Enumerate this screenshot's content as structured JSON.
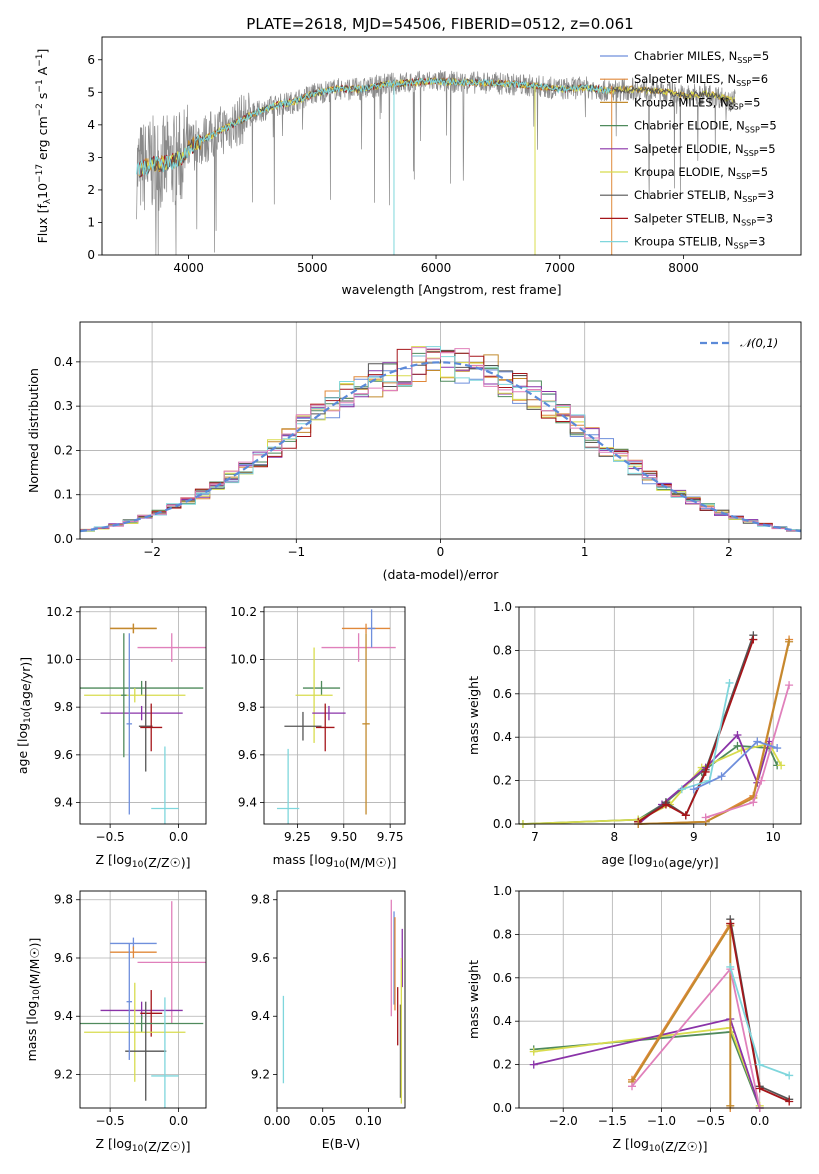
{
  "header": {
    "title": "PLATE=2618, MJD=54506, FIBERID=0512, z=0.061"
  },
  "colors": {
    "Chabrier MILES": "#6f8fdc",
    "Salpeter MILES": "#e0883a",
    "Kroupa MILES": "#c28a2e",
    "Chabrier ELODIE": "#4f8a5c",
    "Salpeter ELODIE": "#8a33a8",
    "Kroupa ELODIE": "#d8dc4e",
    "Chabrier STELIB": "#555555",
    "Salpeter STELIB": "#a5151a",
    "Kroupa STELIB": "#7fd6dc",
    "Pink": "#e080bb",
    "Data": "#8a8a8a"
  },
  "chart_data": [
    {
      "id": "spectrum",
      "type": "line",
      "title": "PLATE=2618, MJD=54506, FIBERID=0512, z=0.061",
      "xlabel": "wavelength [Angstrom, rest frame]",
      "ylabel": "Flux [f_λ 10^-17 erg cm^-2 s^-1 A^-1]",
      "xlim": [
        3300,
        8950
      ],
      "ylim": [
        0,
        6.7
      ],
      "xticks": [
        "4000",
        "5000",
        "6000",
        "7000",
        "8000"
      ],
      "yticks": [
        "0",
        "1",
        "2",
        "3",
        "4",
        "5",
        "6"
      ],
      "legend_position": "right",
      "legend": [
        {
          "name": "Chabrier MILES",
          "suffix": "5"
        },
        {
          "name": "Salpeter MILES",
          "suffix": "6"
        },
        {
          "name": "Kroupa MILES",
          "suffix": "5"
        },
        {
          "name": "Chabrier ELODIE",
          "suffix": "5"
        },
        {
          "name": "Salpeter ELODIE",
          "suffix": "5"
        },
        {
          "name": "Kroupa ELODIE",
          "suffix": "5"
        },
        {
          "name": "Chabrier STELIB",
          "suffix": "3"
        },
        {
          "name": "Salpeter STELIB",
          "suffix": "3"
        },
        {
          "name": "Kroupa STELIB",
          "suffix": "3"
        }
      ],
      "continuum_knots": [
        [
          3580,
          2.6
        ],
        [
          3700,
          2.8
        ],
        [
          3800,
          2.8
        ],
        [
          3950,
          3.0
        ],
        [
          4000,
          3.3
        ],
        [
          4150,
          3.6
        ],
        [
          4300,
          3.9
        ],
        [
          4500,
          4.3
        ],
        [
          4700,
          4.6
        ],
        [
          4850,
          4.7
        ],
        [
          5000,
          4.95
        ],
        [
          5200,
          5.1
        ],
        [
          5400,
          5.1
        ],
        [
          5600,
          5.25
        ],
        [
          5800,
          5.3
        ],
        [
          6000,
          5.35
        ],
        [
          6200,
          5.3
        ],
        [
          6400,
          5.3
        ],
        [
          6600,
          5.25
        ],
        [
          6800,
          5.2
        ],
        [
          7000,
          5.1
        ],
        [
          7200,
          5.15
        ],
        [
          7400,
          5.05
        ],
        [
          7600,
          5.1
        ],
        [
          7800,
          5.05
        ],
        [
          8000,
          4.9
        ],
        [
          8200,
          4.95
        ],
        [
          8400,
          4.75
        ]
      ]
    },
    {
      "id": "residuals",
      "type": "bar",
      "xlabel": "(data-model)/error",
      "ylabel": "Normed distribution",
      "xlim": [
        -2.5,
        2.5
      ],
      "ylim": [
        0,
        0.49
      ],
      "xticks": [
        "−2",
        "−1",
        "0",
        "1",
        "2"
      ],
      "yticks": [
        "0.0",
        "0.1",
        "0.2",
        "0.3",
        "0.4"
      ],
      "grid": true,
      "legend_position": "top-right",
      "normal_label": "𝒩(0,1)"
    },
    {
      "id": "age_vs_Z",
      "type": "scatter",
      "xlabel": "Z [log10(Z/Z☉)]",
      "ylabel": "age  [log10(age/yr)]",
      "xlim": [
        -0.72,
        0.2
      ],
      "ylim": [
        9.31,
        10.22
      ],
      "xticks": [
        "−0.5",
        "0.0"
      ],
      "yticks": [
        "9.4",
        "9.6",
        "9.8",
        "10.0",
        "10.2"
      ],
      "grid": true,
      "points": [
        {
          "s": "Salpeter MILES",
          "x": -0.33,
          "y": 10.13,
          "xerr": 0.17,
          "yerr": 0.02
        },
        {
          "s": "Kroupa MILES",
          "x": -0.33,
          "y": 10.13,
          "xerr": 0.17,
          "yerr": 0.02
        },
        {
          "s": "Pink",
          "x": -0.05,
          "y": 10.05,
          "xerr": 0.25,
          "yerr": 0.06
        },
        {
          "s": "Chabrier ELODIE",
          "x": -0.27,
          "y": 9.88,
          "xerr": 0.45,
          "yerr": 0.03
        },
        {
          "s": "Kroupa ELODIE",
          "x": -0.32,
          "y": 9.85,
          "xerr": 0.37,
          "yerr": 0.03
        },
        {
          "s": "Salpeter ELODIE",
          "x": -0.27,
          "y": 9.775,
          "xerr": 0.3,
          "yerr": 0.03
        },
        {
          "s": "Chabrier STELIB",
          "x": -0.24,
          "y": 9.72,
          "xerr": 0.05,
          "yerr": 0.19
        },
        {
          "s": "Salpeter STELIB",
          "x": -0.2,
          "y": 9.715,
          "xerr": 0.08,
          "yerr": 0.1
        },
        {
          "s": "Kroupa STELIB",
          "x": -0.1,
          "y": 9.375,
          "xerr": 0.1,
          "yerr": 0.26
        },
        {
          "s": "Chabrier MILES",
          "x": -0.36,
          "y": 9.73,
          "xerr": 0.02,
          "yerr": 0.38
        },
        {
          "s": "Chabrier ELODIE",
          "x": -0.4,
          "y": 9.85,
          "xerr": 0.02,
          "yerr": 0.26
        }
      ]
    },
    {
      "id": "age_vs_mass",
      "type": "scatter",
      "xlabel": "mass [log10(M/M☉)]",
      "ylabel": "",
      "xlim": [
        9.07,
        9.83
      ],
      "ylim": [
        9.31,
        10.22
      ],
      "xticks": [
        "9.25",
        "9.50",
        "9.75"
      ],
      "yticks": [
        "9.4",
        "9.6",
        "9.8",
        "10.0",
        "10.2"
      ],
      "grid": true,
      "points": [
        {
          "s": "Salpeter MILES",
          "x": 9.62,
          "y": 10.13,
          "xerr": 0.13,
          "yerr": 0.02
        },
        {
          "s": "Pink",
          "x": 9.58,
          "y": 10.05,
          "xerr": 0.2,
          "yerr": 0.06
        },
        {
          "s": "Chabrier ELODIE",
          "x": 9.38,
          "y": 9.88,
          "xerr": 0.1,
          "yerr": 0.03
        },
        {
          "s": "Kroupa ELODIE",
          "x": 9.34,
          "y": 9.85,
          "xerr": 0.1,
          "yerr": 0.2
        },
        {
          "s": "Salpeter ELODIE",
          "x": 9.42,
          "y": 9.775,
          "xerr": 0.09,
          "yerr": 0.03
        },
        {
          "s": "Chabrier STELIB",
          "x": 9.28,
          "y": 9.72,
          "xerr": 0.1,
          "yerr": 0.06
        },
        {
          "s": "Salpeter STELIB",
          "x": 9.4,
          "y": 9.715,
          "xerr": 0.05,
          "yerr": 0.1
        },
        {
          "s": "Kroupa STELIB",
          "x": 9.2,
          "y": 9.375,
          "xerr": 0.06,
          "yerr": 0.25
        },
        {
          "s": "Chabrier MILES",
          "x": 9.65,
          "y": 10.13,
          "xerr": 0.02,
          "yerr": 0.08
        },
        {
          "s": "Kroupa MILES",
          "x": 9.62,
          "y": 9.73,
          "xerr": 0.02,
          "yerr": 0.38
        }
      ]
    },
    {
      "id": "weight_vs_age",
      "type": "line",
      "xlabel": "age  [log10(age/yr)]",
      "ylabel": "mass weight",
      "xlim": [
        6.8,
        10.35
      ],
      "ylim": [
        0,
        1
      ],
      "xticks": [
        "7",
        "8",
        "9",
        "10"
      ],
      "yticks": [
        "0.0",
        "0.2",
        "0.4",
        "0.6",
        "0.8",
        "1.0"
      ],
      "grid": true,
      "series": [
        {
          "s": "Chabrier ELODIE",
          "pts": [
            [
              6.85,
              0.0
            ],
            [
              8.3,
              0.02
            ],
            [
              8.65,
              0.1
            ],
            [
              9.1,
              0.24
            ],
            [
              9.55,
              0.36
            ],
            [
              9.95,
              0.35
            ],
            [
              10.05,
              0.27
            ]
          ]
        },
        {
          "s": "Kroupa ELODIE",
          "pts": [
            [
              6.85,
              0.0
            ],
            [
              8.3,
              0.02
            ],
            [
              8.7,
              0.09
            ],
            [
              9.1,
              0.26
            ],
            [
              9.6,
              0.34
            ],
            [
              9.95,
              0.37
            ],
            [
              10.1,
              0.27
            ]
          ]
        },
        {
          "s": "Salpeter ELODIE",
          "pts": [
            [
              8.3,
              0.0
            ],
            [
              8.6,
              0.09
            ],
            [
              9.15,
              0.26
            ],
            [
              9.55,
              0.41
            ],
            [
              9.8,
              0.19
            ],
            [
              9.95,
              0.38
            ]
          ]
        },
        {
          "s": "Chabrier STELIB",
          "pts": [
            [
              8.3,
              0.01
            ],
            [
              8.65,
              0.1
            ],
            [
              8.9,
              0.04
            ],
            [
              9.15,
              0.25
            ],
            [
              9.75,
              0.87
            ]
          ]
        },
        {
          "s": "Salpeter STELIB",
          "pts": [
            [
              8.3,
              0.01
            ],
            [
              8.65,
              0.09
            ],
            [
              8.9,
              0.04
            ],
            [
              9.15,
              0.24
            ],
            [
              9.75,
              0.85
            ]
          ]
        },
        {
          "s": "Kroupa STELIB",
          "pts": [
            [
              8.85,
              0.16
            ],
            [
              9.2,
              0.2
            ],
            [
              9.45,
              0.65
            ]
          ]
        },
        {
          "s": "Salpeter MILES",
          "pts": [
            [
              8.3,
              0.0
            ],
            [
              9.15,
              0.01
            ],
            [
              9.75,
              0.13
            ],
            [
              10.2,
              0.85
            ]
          ]
        },
        {
          "s": "Kroupa MILES",
          "pts": [
            [
              8.3,
              0.0
            ],
            [
              9.15,
              0.01
            ],
            [
              9.75,
              0.12
            ],
            [
              10.2,
              0.84
            ]
          ]
        },
        {
          "s": "Pink",
          "pts": [
            [
              9.15,
              0.03
            ],
            [
              9.75,
              0.1
            ],
            [
              9.85,
              0.2
            ],
            [
              10.2,
              0.64
            ]
          ]
        },
        {
          "s": "Chabrier MILES",
          "pts": [
            [
              9.0,
              0.16
            ],
            [
              9.35,
              0.22
            ],
            [
              9.8,
              0.38
            ],
            [
              10.05,
              0.35
            ]
          ]
        }
      ]
    },
    {
      "id": "mass_vs_Z",
      "type": "scatter",
      "xlabel": "Z [log10(Z/Z☉)]",
      "ylabel": "mass [log10(M/M☉)]",
      "xlim": [
        -0.72,
        0.2
      ],
      "ylim": [
        9.085,
        9.83
      ],
      "xticks": [
        "−0.5",
        "0.0"
      ],
      "yticks": [
        "9.2",
        "9.4",
        "9.6",
        "9.8"
      ],
      "grid": true,
      "points": [
        {
          "s": "Chabrier MILES",
          "x": -0.33,
          "y": 9.65,
          "xerr": 0.17,
          "yerr": 0.02
        },
        {
          "s": "Salpeter MILES",
          "x": -0.33,
          "y": 9.62,
          "xerr": 0.17,
          "yerr": 0.02
        },
        {
          "s": "Pink",
          "x": -0.05,
          "y": 9.585,
          "xerr": 0.25,
          "yerr": 0.21
        },
        {
          "s": "Salpeter ELODIE",
          "x": -0.27,
          "y": 9.42,
          "xerr": 0.3,
          "yerr": 0.03
        },
        {
          "s": "Salpeter STELIB",
          "x": -0.2,
          "y": 9.41,
          "xerr": 0.08,
          "yerr": 0.08
        },
        {
          "s": "Chabrier ELODIE",
          "x": -0.27,
          "y": 9.375,
          "xerr": 0.45,
          "yerr": 0.03
        },
        {
          "s": "Kroupa ELODIE",
          "x": -0.32,
          "y": 9.345,
          "xerr": 0.37,
          "yerr": 0.17
        },
        {
          "s": "Chabrier STELIB",
          "x": -0.24,
          "y": 9.28,
          "xerr": 0.15,
          "yerr": 0.17
        },
        {
          "s": "Kroupa STELIB",
          "x": -0.1,
          "y": 9.195,
          "xerr": 0.1,
          "yerr": 0.27
        },
        {
          "s": "Chabrier MILES",
          "x": -0.36,
          "y": 9.45,
          "xerr": 0.02,
          "yerr": 0.2
        }
      ]
    },
    {
      "id": "mass_vs_ebv",
      "type": "scatter",
      "xlabel": "E(B-V)",
      "ylabel": "",
      "xlim": [
        0,
        0.14
      ],
      "ylim": [
        9.085,
        9.83
      ],
      "xticks": [
        "0.00",
        "0.05",
        "0.10"
      ],
      "yticks": [
        "9.2",
        "9.4",
        "9.6",
        "9.8"
      ],
      "grid": false,
      "points": [
        {
          "s": "Kroupa STELIB",
          "x": 0.007,
          "y": 9.32,
          "xerr": 0.0,
          "yerr": 0.15
        },
        {
          "s": "Pink",
          "x": 0.125,
          "y": 9.6,
          "xerr": 0.0,
          "yerr": 0.2
        },
        {
          "s": "Chabrier MILES",
          "x": 0.128,
          "y": 9.6,
          "xerr": 0.0,
          "yerr": 0.16
        },
        {
          "s": "Salpeter MILES",
          "x": 0.129,
          "y": 9.58,
          "xerr": 0.0,
          "yerr": 0.16
        },
        {
          "s": "Salpeter STELIB",
          "x": 0.132,
          "y": 9.4,
          "xerr": 0.0,
          "yerr": 0.1
        },
        {
          "s": "Chabrier STELIB",
          "x": 0.135,
          "y": 9.28,
          "xerr": 0.0,
          "yerr": 0.16
        },
        {
          "s": "Salpeter ELODIE",
          "x": 0.137,
          "y": 9.6,
          "xerr": 0.0,
          "yerr": 0.1
        },
        {
          "s": "Kroupa ELODIE",
          "x": 0.136,
          "y": 9.35,
          "xerr": 0.0,
          "yerr": 0.25
        }
      ]
    },
    {
      "id": "weight_vs_Z",
      "type": "line",
      "xlabel": "Z [log10(Z/Z☉)]",
      "ylabel": "mass weight",
      "xlim": [
        -2.45,
        0.42
      ],
      "ylim": [
        0,
        1
      ],
      "xticks": [
        "−2.0",
        "−1.5",
        "−1.0",
        "−0.5",
        "0.0"
      ],
      "yticks": [
        "0.0",
        "0.2",
        "0.4",
        "0.6",
        "0.8",
        "1.0"
      ],
      "grid": true,
      "series": [
        {
          "s": "Chabrier ELODIE",
          "pts": [
            [
              -2.3,
              0.27
            ],
            [
              -0.3,
              0.35
            ],
            [
              0.0,
              0.0
            ]
          ]
        },
        {
          "s": "Kroupa ELODIE",
          "pts": [
            [
              -2.3,
              0.26
            ],
            [
              -0.3,
              0.37
            ],
            [
              0.0,
              0.01
            ]
          ]
        },
        {
          "s": "Salpeter ELODIE",
          "pts": [
            [
              -2.3,
              0.2
            ],
            [
              -0.3,
              0.41
            ],
            [
              0.0,
              0.0
            ]
          ]
        },
        {
          "s": "Salpeter MILES",
          "pts": [
            [
              -1.3,
              0.13
            ],
            [
              -0.3,
              0.85
            ],
            [
              -0.3,
              0.0
            ]
          ]
        },
        {
          "s": "Kroupa MILES",
          "pts": [
            [
              -1.3,
              0.12
            ],
            [
              -0.3,
              0.84
            ],
            [
              -0.3,
              0.01
            ]
          ]
        },
        {
          "s": "Pink",
          "pts": [
            [
              -1.3,
              0.1
            ],
            [
              -0.3,
              0.64
            ],
            [
              0.0,
              0.0
            ]
          ]
        },
        {
          "s": "Chabrier STELIB",
          "pts": [
            [
              -0.3,
              0.87
            ],
            [
              0.0,
              0.1
            ],
            [
              0.3,
              0.04
            ]
          ]
        },
        {
          "s": "Salpeter STELIB",
          "pts": [
            [
              -0.3,
              0.85
            ],
            [
              0.0,
              0.09
            ],
            [
              0.3,
              0.03
            ]
          ]
        },
        {
          "s": "Kroupa STELIB",
          "pts": [
            [
              -0.3,
              0.65
            ],
            [
              0.0,
              0.2
            ],
            [
              0.3,
              0.15
            ]
          ]
        }
      ]
    }
  ]
}
